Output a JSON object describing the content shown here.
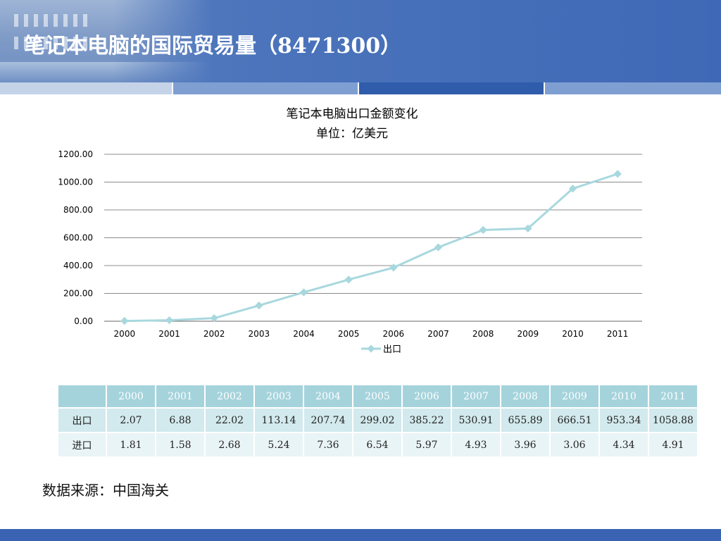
{
  "slide": {
    "title": "笔记本电脑的国际贸易量（8471300）",
    "source": "数据来源：中国海关"
  },
  "colors": {
    "header": "#4a73bb",
    "line": "#a8d8de",
    "table_header": "#a5d3dc",
    "table_row1": "#d2e9ed",
    "table_row2": "#e9f4f6",
    "footer": "#3a63b3"
  },
  "chart_data": {
    "type": "line",
    "title": "笔记本电脑出口金额变化",
    "subtitle": "单位：亿美元",
    "categories": [
      "2000",
      "2001",
      "2002",
      "2003",
      "2004",
      "2005",
      "2006",
      "2007",
      "2008",
      "2009",
      "2010",
      "2011"
    ],
    "series": [
      {
        "name": "出口",
        "values": [
          2.07,
          6.88,
          22.02,
          113.14,
          207.74,
          299.02,
          385.22,
          530.91,
          655.89,
          666.51,
          953.34,
          1058.88
        ]
      }
    ],
    "ylim": [
      0,
      1200
    ],
    "yticks": [
      "0.00",
      "200.00",
      "400.00",
      "600.00",
      "800.00",
      "1000.00",
      "1200.00"
    ],
    "grid": true,
    "legend_position": "bottom",
    "marker": "diamond"
  },
  "table": {
    "headers": [
      "",
      "2000",
      "2001",
      "2002",
      "2003",
      "2004",
      "2005",
      "2006",
      "2007",
      "2008",
      "2009",
      "2010",
      "2011"
    ],
    "rows": [
      {
        "label": "出口",
        "values": [
          "2.07",
          "6.88",
          "22.02",
          "113.14",
          "207.74",
          "299.02",
          "385.22",
          "530.91",
          "655.89",
          "666.51",
          "953.34",
          "1058.88"
        ]
      },
      {
        "label": "进口",
        "values": [
          "1.81",
          "1.58",
          "2.68",
          "5.24",
          "7.36",
          "6.54",
          "5.97",
          "4.93",
          "3.96",
          "3.06",
          "4.34",
          "4.91"
        ]
      }
    ]
  }
}
